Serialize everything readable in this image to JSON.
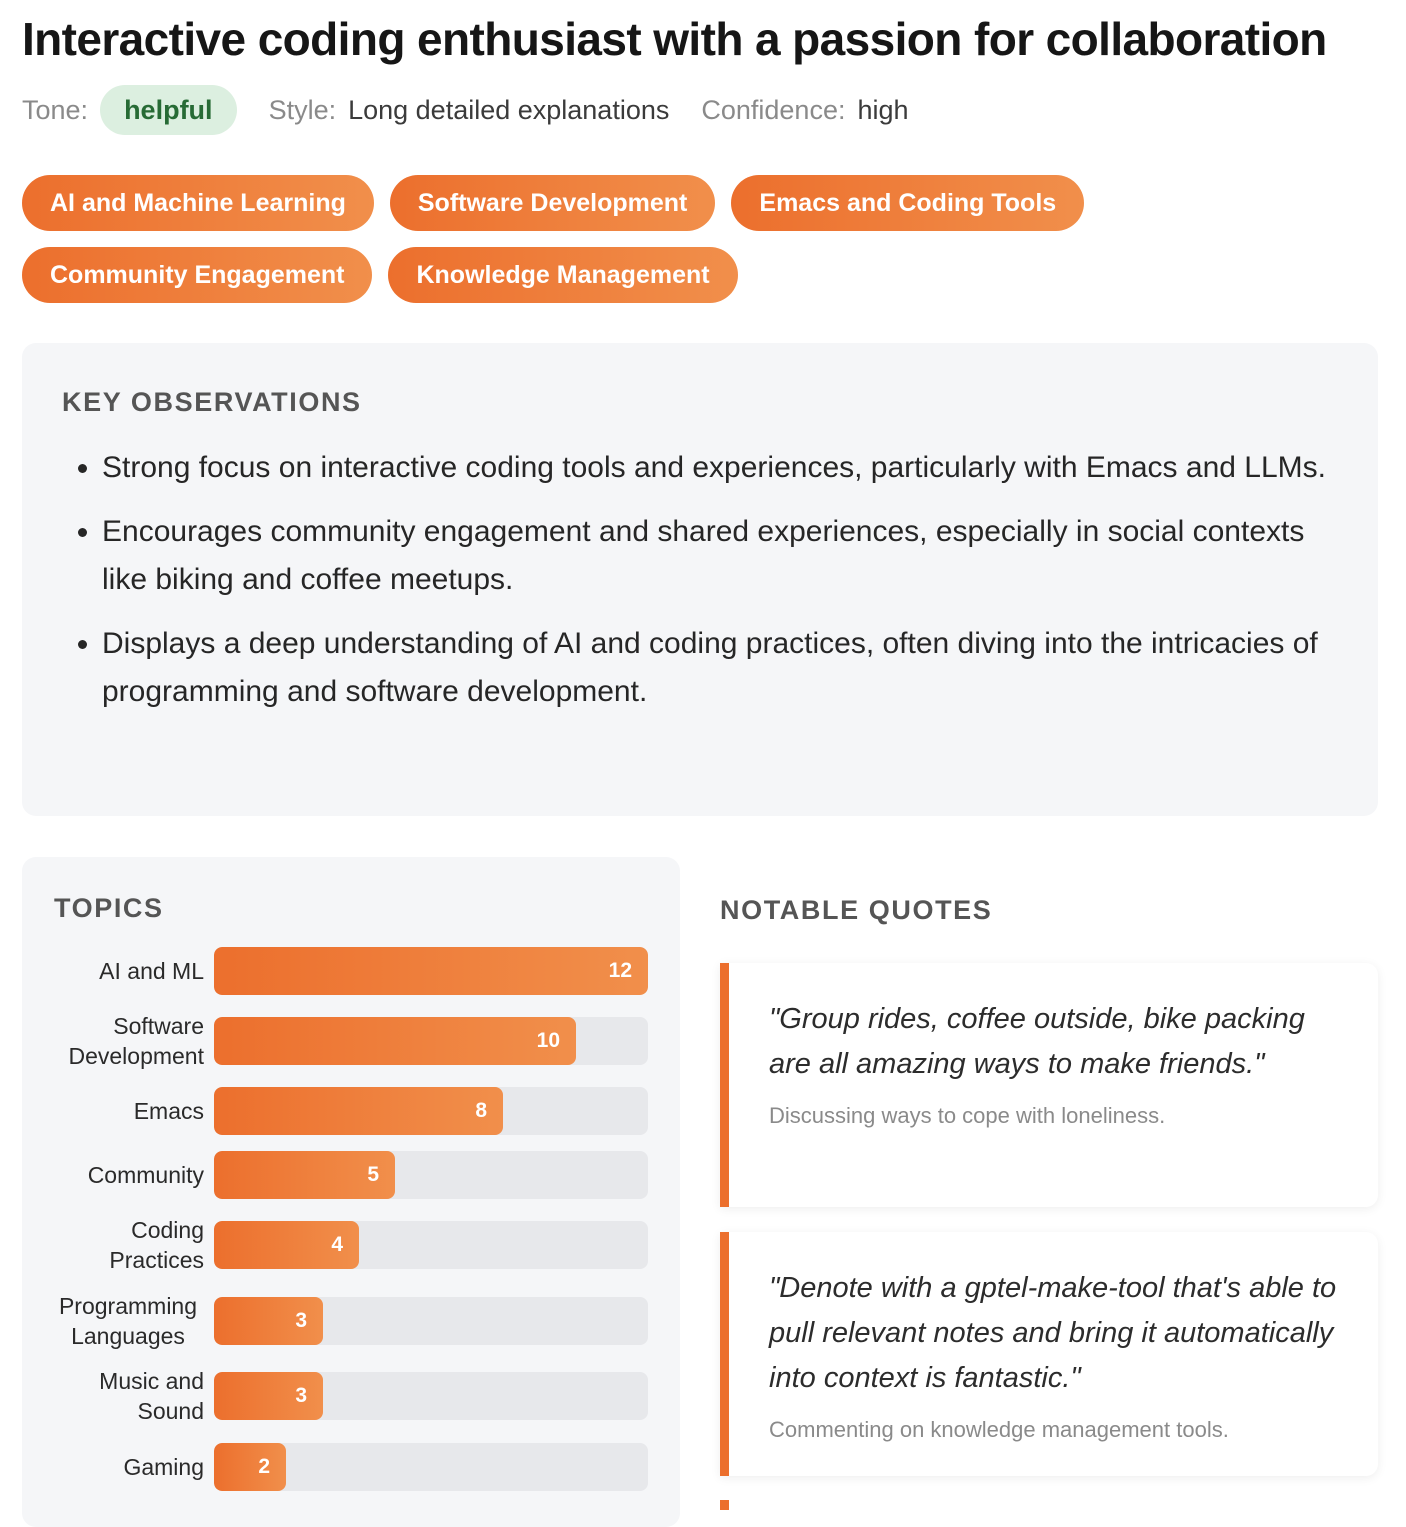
{
  "header": {
    "title": "Interactive coding enthusiast with a passion for collaboration",
    "tone_label": "Tone:",
    "tone": "helpful",
    "style_label": "Style:",
    "style": "Long detailed explanations",
    "confidence_label": "Confidence:",
    "confidence": "high"
  },
  "tags": [
    "AI and Machine Learning",
    "Software Development",
    "Emacs and Coding Tools",
    "Community Engagement",
    "Knowledge Management"
  ],
  "observations": {
    "heading": "KEY OBSERVATIONS",
    "items": [
      "Strong focus on interactive coding tools and experiences, particularly with Emacs and LLMs.",
      "Encourages community engagement and shared experiences, especially in social contexts like biking and coffee meetups.",
      "Displays a deep understanding of AI and coding practices, often diving into the intricacies of programming and software development."
    ]
  },
  "topics": {
    "heading": "TOPICS"
  },
  "chart_data": {
    "type": "bar",
    "orientation": "horizontal",
    "title": "TOPICS",
    "categories": [
      "AI and ML",
      "Software Development",
      "Emacs",
      "Community",
      "Coding Practices",
      "Programming Languages",
      "Music and Sound",
      "Gaming"
    ],
    "values": [
      12,
      10,
      8,
      5,
      4,
      3,
      3,
      2
    ],
    "xlim": [
      0,
      12
    ]
  },
  "quotes": {
    "heading": "NOTABLE QUOTES",
    "items": [
      {
        "text": "\"Group rides, coffee outside, bike packing are all amazing ways to make friends.\"",
        "context": "Discussing ways to cope with loneliness."
      },
      {
        "text": "\"Denote with a gptel-make-tool that's able to pull relevant notes and bring it automatically into context is fantastic.\"",
        "context": "Commenting on knowledge management tools."
      }
    ]
  },
  "colors": {
    "accent": "#ec6f2d",
    "accent_light": "#f18f4b",
    "tone_bg": "#dcefe0",
    "tone_text": "#276b35"
  }
}
